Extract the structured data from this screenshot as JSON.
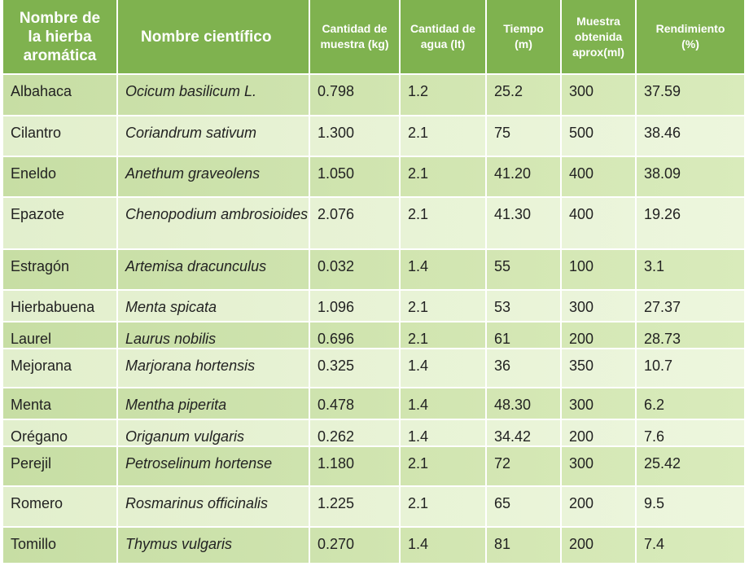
{
  "table": {
    "header": [
      [
        "Nombre de",
        "la hierba",
        "aromática"
      ],
      [
        "Nombre científico"
      ],
      [
        "Cantidad de",
        "muestra (kg)"
      ],
      [
        "Cantidad de",
        "agua (lt)"
      ],
      [
        "Tiempo",
        "(m)"
      ],
      [
        "Muestra",
        "obtenida",
        "aprox(ml)"
      ],
      [
        "Rendimiento",
        "(%)"
      ]
    ],
    "rows": [
      [
        "Albahaca",
        "Ocicum basilicum L.",
        "0.798",
        "1.2",
        "25.2",
        "300",
        "37.59"
      ],
      [
        "Cilantro",
        "Coriandrum sativum",
        "1.300",
        "2.1",
        "75",
        "500",
        "38.46"
      ],
      [
        "Eneldo",
        "Anethum graveolens",
        "1.050",
        "2.1",
        "41.20",
        "400",
        "38.09"
      ],
      [
        "Epazote",
        "Chenopodium ambrosioides",
        "2.076",
        "2.1",
        "41.30",
        "400",
        "19.26"
      ],
      [
        "Estragón",
        "Artemisa dracunculus",
        "0.032",
        "1.4",
        "55",
        "100",
        "3.1"
      ],
      [
        "Hierbabuena",
        "Menta spicata",
        "1.096",
        "2.1",
        "53",
        "300",
        "27.37"
      ],
      [
        "Laurel",
        "Laurus nobilis",
        "0.696",
        "2.1",
        "61",
        "200",
        "28.73"
      ],
      [
        "Mejorana",
        "Marjorana hortensis",
        "0.325",
        "1.4",
        "36",
        "350",
        "10.7"
      ],
      [
        "Menta",
        "Mentha piperita",
        "0.478",
        "1.4",
        "48.30",
        "300",
        "6.2"
      ],
      [
        "Orégano",
        "Origanum vulgaris",
        "0.262",
        "1.4",
        "34.42",
        "200",
        "7.6"
      ],
      [
        "Perejil",
        "Petroselinum hortense",
        "1.180",
        "2.1",
        "72",
        "300",
        "25.42"
      ],
      [
        "Romero",
        "Rosmarinus officinalis",
        "1.225",
        "2.1",
        "65",
        "200",
        "9.5"
      ],
      [
        "Tomillo",
        "Thymus vulgaris",
        "0.270",
        "1.4",
        "81",
        "200",
        "7.4"
      ]
    ]
  }
}
